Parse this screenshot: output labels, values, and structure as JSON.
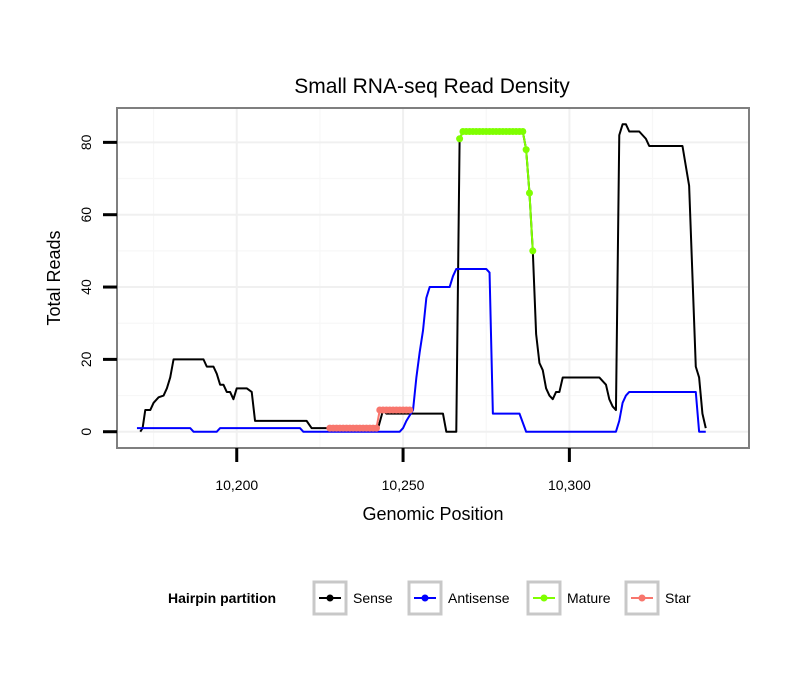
{
  "colors": {
    "sense": "#000000",
    "antisense": "#0000ff",
    "mature": "#7fff00",
    "star": "#f8766d",
    "panel_border": "#7f7f7f",
    "grid_major": "#f0f0f0",
    "grid_minor": "#f7f7f7"
  },
  "chart_data": {
    "type": "line",
    "title": "Small RNA-seq Read Density",
    "xlabel": "Genomic Position",
    "ylabel": "Total Reads",
    "xlim": [
      10164,
      10354
    ],
    "ylim": [
      -4.5,
      89.5
    ],
    "x_ticks": [
      10200,
      10250,
      10300
    ],
    "x_tick_labels": [
      "10,200",
      "10,250",
      "10,300"
    ],
    "x_minor_ticks": [
      10175,
      10225,
      10275,
      10325
    ],
    "y_ticks": [
      0,
      20,
      40,
      60,
      80
    ],
    "y_tick_labels": [
      "0",
      "20",
      "40",
      "60",
      "80"
    ],
    "y_minor_ticks": [
      10,
      30,
      50,
      70
    ],
    "legend": {
      "title": "Hairpin partition",
      "position": "bottom",
      "entries": [
        "Sense",
        "Antisense",
        "Mature",
        "Star"
      ]
    },
    "series": [
      {
        "name": "Sense",
        "color_key": "sense",
        "points": [
          [
            10171,
            0
          ],
          [
            10171.7,
            1
          ],
          [
            10172.5,
            6
          ],
          [
            10174,
            6
          ],
          [
            10175,
            8
          ],
          [
            10176.5,
            9.5
          ],
          [
            10178,
            10
          ],
          [
            10179,
            12
          ],
          [
            10180,
            15
          ],
          [
            10181,
            20
          ],
          [
            10183,
            20
          ],
          [
            10188,
            20
          ],
          [
            10190,
            20
          ],
          [
            10191,
            18
          ],
          [
            10193,
            18
          ],
          [
            10194,
            16
          ],
          [
            10195,
            13
          ],
          [
            10196,
            13
          ],
          [
            10197,
            11
          ],
          [
            10198,
            11
          ],
          [
            10199,
            9
          ],
          [
            10200,
            12
          ],
          [
            10203,
            12
          ],
          [
            10204.5,
            11
          ],
          [
            10205.5,
            3
          ],
          [
            10210,
            3
          ],
          [
            10215,
            3
          ],
          [
            10221,
            3
          ],
          [
            10222.5,
            1
          ],
          [
            10224,
            1
          ],
          [
            10242.5,
            1
          ],
          [
            10244,
            6
          ],
          [
            10245,
            5
          ],
          [
            10252,
            5
          ],
          [
            10262,
            5
          ],
          [
            10263,
            0
          ],
          [
            10266,
            0
          ],
          [
            10267,
            81
          ],
          [
            10268,
            83
          ],
          [
            10278,
            83
          ],
          [
            10286,
            83
          ],
          [
            10287,
            78
          ],
          [
            10288,
            66
          ],
          [
            10289,
            50
          ],
          [
            10290,
            27
          ],
          [
            10291,
            19
          ],
          [
            10292,
            17
          ],
          [
            10293,
            12
          ],
          [
            10294,
            10
          ],
          [
            10295,
            9
          ],
          [
            10296,
            11
          ],
          [
            10297,
            11
          ],
          [
            10298,
            15
          ],
          [
            10309,
            15
          ],
          [
            10311,
            13
          ],
          [
            10312,
            9
          ],
          [
            10313,
            7
          ],
          [
            10314,
            6
          ],
          [
            10315,
            82
          ],
          [
            10316,
            85
          ],
          [
            10317,
            85
          ],
          [
            10318,
            83
          ],
          [
            10321,
            83
          ],
          [
            10323,
            81
          ],
          [
            10324,
            79
          ],
          [
            10329,
            79
          ],
          [
            10334,
            79
          ],
          [
            10336,
            68
          ],
          [
            10338,
            18
          ],
          [
            10339,
            15
          ],
          [
            10340,
            5
          ],
          [
            10341,
            1
          ]
        ]
      },
      {
        "name": "Antisense",
        "color_key": "antisense",
        "points": [
          [
            10170,
            1
          ],
          [
            10186,
            1
          ],
          [
            10187,
            0
          ],
          [
            10194,
            0
          ],
          [
            10195,
            1
          ],
          [
            10210,
            1
          ],
          [
            10219,
            1
          ],
          [
            10220,
            0
          ],
          [
            10249,
            0
          ],
          [
            10250,
            1
          ],
          [
            10251,
            3
          ],
          [
            10253,
            6
          ],
          [
            10254,
            15
          ],
          [
            10255,
            22
          ],
          [
            10256,
            28
          ],
          [
            10257,
            37
          ],
          [
            10258,
            40
          ],
          [
            10259,
            40
          ],
          [
            10264,
            40
          ],
          [
            10265,
            43
          ],
          [
            10266,
            45
          ],
          [
            10275,
            45
          ],
          [
            10276,
            44
          ],
          [
            10277,
            5
          ],
          [
            10285,
            5
          ],
          [
            10287,
            0
          ],
          [
            10310,
            0
          ],
          [
            10314,
            0
          ],
          [
            10315,
            3
          ],
          [
            10316,
            8
          ],
          [
            10317,
            10
          ],
          [
            10318,
            11
          ],
          [
            10338,
            11
          ],
          [
            10339,
            0
          ],
          [
            10341,
            0
          ]
        ]
      },
      {
        "name": "Mature",
        "color_key": "mature",
        "points": [
          [
            10267,
            81
          ],
          [
            10268,
            83
          ],
          [
            10269,
            83
          ],
          [
            10270,
            83
          ],
          [
            10271,
            83
          ],
          [
            10272,
            83
          ],
          [
            10273,
            83
          ],
          [
            10274,
            83
          ],
          [
            10275,
            83
          ],
          [
            10276,
            83
          ],
          [
            10277,
            83
          ],
          [
            10278,
            83
          ],
          [
            10279,
            83
          ],
          [
            10280,
            83
          ],
          [
            10281,
            83
          ],
          [
            10282,
            83
          ],
          [
            10283,
            83
          ],
          [
            10284,
            83
          ],
          [
            10285,
            83
          ],
          [
            10286,
            83
          ],
          [
            10287,
            78
          ],
          [
            10288,
            66
          ],
          [
            10289,
            50
          ]
        ]
      },
      {
        "name": "Star",
        "color_key": "star",
        "points": [
          [
            10228,
            1
          ],
          [
            10229,
            1
          ],
          [
            10230,
            1
          ],
          [
            10231,
            1
          ],
          [
            10232,
            1
          ],
          [
            10233,
            1
          ],
          [
            10234,
            1
          ],
          [
            10235,
            1
          ],
          [
            10236,
            1
          ],
          [
            10237,
            1
          ],
          [
            10238,
            1
          ],
          [
            10239,
            1
          ],
          [
            10240,
            1
          ],
          [
            10241,
            1
          ],
          [
            10242,
            1
          ],
          [
            10243,
            6
          ],
          [
            10244,
            6
          ],
          [
            10245,
            6
          ],
          [
            10246,
            6
          ],
          [
            10247,
            6
          ],
          [
            10248,
            6
          ],
          [
            10249,
            6
          ],
          [
            10250,
            6
          ],
          [
            10251,
            6
          ],
          [
            10252,
            6
          ]
        ]
      }
    ]
  }
}
